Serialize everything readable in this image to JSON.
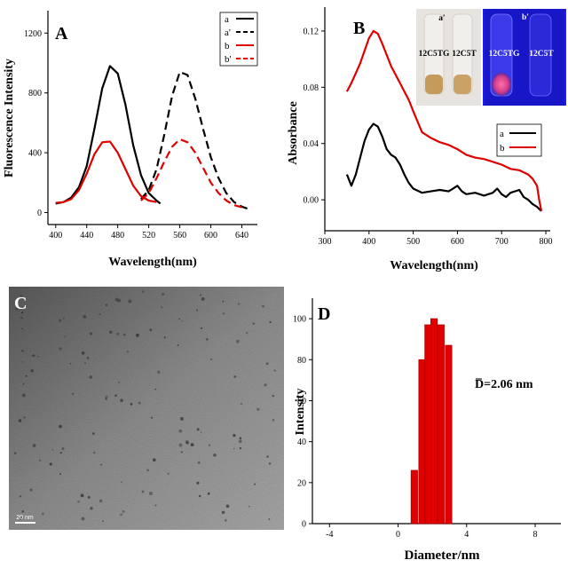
{
  "chart_data": [
    {
      "panel": "A",
      "type": "line",
      "xlabel": "Wavelength(nm)",
      "ylabel": "Fluorescence Intensity",
      "xlim": [
        390,
        660
      ],
      "ylim": [
        -80,
        1350
      ],
      "xticks": [
        400,
        440,
        480,
        520,
        560,
        600,
        640
      ],
      "yticks": [
        0,
        400,
        800,
        1200
      ],
      "legend_position": "top-right",
      "series": [
        {
          "name": "a",
          "color": "#000000",
          "dash": false,
          "x": [
            400,
            410,
            420,
            430,
            440,
            450,
            460,
            470,
            480,
            490,
            500,
            510,
            520,
            530,
            535
          ],
          "y": [
            60,
            70,
            100,
            170,
            310,
            560,
            830,
            980,
            930,
            720,
            450,
            250,
            130,
            80,
            60
          ]
        },
        {
          "name": "a'",
          "color": "#000000",
          "dash": true,
          "x": [
            510,
            520,
            530,
            540,
            550,
            560,
            570,
            580,
            590,
            600,
            610,
            620,
            630,
            640,
            648
          ],
          "y": [
            90,
            150,
            290,
            520,
            780,
            940,
            920,
            760,
            560,
            370,
            230,
            130,
            70,
            40,
            25
          ]
        },
        {
          "name": "b",
          "color": "#e00000",
          "dash": false,
          "x": [
            400,
            410,
            420,
            430,
            440,
            450,
            460,
            470,
            480,
            490,
            500,
            510,
            520,
            530
          ],
          "y": [
            65,
            70,
            90,
            150,
            260,
            390,
            470,
            475,
            400,
            290,
            180,
            110,
            80,
            70
          ]
        },
        {
          "name": "b'",
          "color": "#e00000",
          "dash": true,
          "x": [
            510,
            520,
            530,
            540,
            550,
            560,
            570,
            580,
            590,
            600,
            610,
            620,
            630,
            640
          ],
          "y": [
            80,
            130,
            230,
            340,
            440,
            490,
            470,
            400,
            300,
            200,
            130,
            80,
            50,
            35
          ]
        }
      ]
    },
    {
      "panel": "B",
      "type": "line",
      "xlabel": "Wavelength(nm)",
      "ylabel": "Absorbance",
      "xlim": [
        300,
        810
      ],
      "ylim": [
        -0.022,
        0.137
      ],
      "xticks": [
        300,
        400,
        500,
        600,
        700,
        800
      ],
      "yticks": [
        0.0,
        0.04,
        0.08,
        0.12
      ],
      "ytick_labels": [
        "0.00",
        "0.04",
        "0.08",
        "0.12"
      ],
      "legend_position": "right",
      "series": [
        {
          "name": "a",
          "color": "#000000",
          "dash": false,
          "x": [
            350,
            360,
            370,
            380,
            390,
            400,
            410,
            420,
            430,
            440,
            450,
            460,
            470,
            480,
            490,
            500,
            520,
            540,
            560,
            580,
            600,
            610,
            620,
            640,
            660,
            680,
            690,
            700,
            710,
            720,
            740,
            750,
            760,
            770,
            780,
            790
          ],
          "y": [
            0.018,
            0.01,
            0.018,
            0.03,
            0.042,
            0.05,
            0.054,
            0.052,
            0.045,
            0.036,
            0.032,
            0.03,
            0.025,
            0.018,
            0.012,
            0.008,
            0.005,
            0.006,
            0.007,
            0.006,
            0.01,
            0.006,
            0.004,
            0.005,
            0.003,
            0.005,
            0.008,
            0.004,
            0.002,
            0.005,
            0.007,
            0.002,
            0.0,
            -0.003,
            -0.005,
            -0.008
          ]
        },
        {
          "name": "b",
          "color": "#e00000",
          "dash": false,
          "x": [
            350,
            360,
            370,
            380,
            390,
            400,
            410,
            420,
            430,
            440,
            450,
            460,
            470,
            480,
            490,
            500,
            520,
            540,
            560,
            580,
            600,
            620,
            640,
            660,
            680,
            700,
            720,
            740,
            760,
            770,
            780,
            785,
            790
          ],
          "y": [
            0.077,
            0.083,
            0.09,
            0.097,
            0.106,
            0.115,
            0.12,
            0.118,
            0.111,
            0.103,
            0.095,
            0.089,
            0.083,
            0.077,
            0.071,
            0.063,
            0.048,
            0.044,
            0.041,
            0.039,
            0.036,
            0.032,
            0.03,
            0.029,
            0.027,
            0.025,
            0.022,
            0.021,
            0.018,
            0.015,
            0.01,
            0.0,
            -0.008
          ]
        }
      ]
    },
    {
      "panel": "D",
      "type": "bar",
      "xlabel": "Diameter/nm",
      "ylabel": "Intensity",
      "xlim": [
        -5,
        9.5
      ],
      "ylim": [
        0,
        110
      ],
      "xticks": [
        -4,
        0,
        4,
        8
      ],
      "yticks": [
        0,
        20,
        40,
        60,
        80,
        100
      ],
      "bar_width": 0.38,
      "categories": [
        0.95,
        1.4,
        1.75,
        2.1,
        2.5,
        2.95
      ],
      "values": [
        26,
        80,
        97,
        100,
        97,
        87
      ]
    }
  ],
  "panels": {
    "A": "A",
    "B": "B",
    "C": "C",
    "D": "D"
  },
  "legend_A": [
    "a",
    "a'",
    "b",
    "b'"
  ],
  "legend_B": [
    "a",
    "b"
  ],
  "inset": {
    "left_label": "a′",
    "right_label": "b′",
    "tube_labels_left": [
      "12C5TG",
      "12C5T"
    ],
    "tube_labels_right": [
      "12C5TG",
      "12C5T"
    ]
  },
  "tem": {
    "scale_bar_label": "20 nm"
  },
  "annotation_D": "D̅=2.06 nm",
  "colors": {
    "black": "#000000",
    "red": "#e00000",
    "fluorescence_blue": "#1d1df2"
  }
}
